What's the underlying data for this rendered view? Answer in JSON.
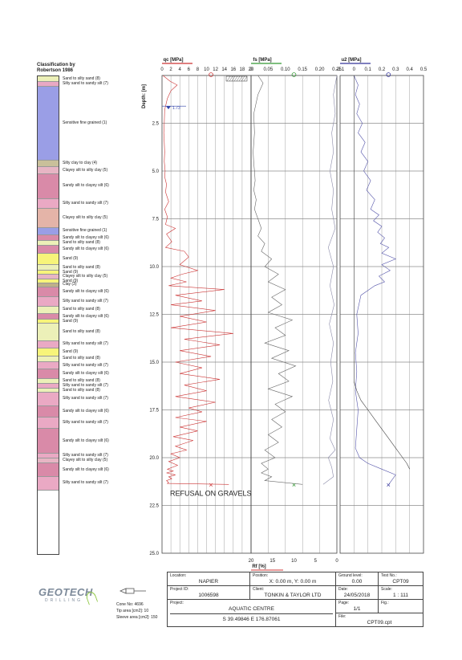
{
  "classification": {
    "title": "Classification by\nRobertson 1986",
    "layers": [
      {
        "top": 0,
        "bottom": 0.3,
        "color": "#ecf0b8",
        "label": "Sand to silty sand (8)"
      },
      {
        "top": 0.3,
        "bottom": 0.55,
        "color": "#e9a8c4",
        "label": "Silty sand to sandy silt (7)"
      },
      {
        "top": 0.55,
        "bottom": 4.4,
        "color": "#9a9ee6",
        "label": "Sensitive fine grained (1)"
      },
      {
        "top": 4.4,
        "bottom": 4.75,
        "color": "#c9c09a",
        "label": "Silty clay to clay (4)"
      },
      {
        "top": 4.75,
        "bottom": 5.1,
        "color": "#e7b5c4",
        "label": "Clayey silt to silty clay (5)"
      },
      {
        "top": 5.1,
        "bottom": 6.4,
        "color": "#d98aa8",
        "label": "Sandy silt to clayey silt (6)"
      },
      {
        "top": 6.4,
        "bottom": 6.9,
        "color": "#eaa9c4",
        "label": "Silty sand to sandy silt (7)"
      },
      {
        "top": 6.9,
        "bottom": 7.9,
        "color": "#e4b4a8",
        "label": "Clayey silt to silty clay (5)"
      },
      {
        "top": 7.9,
        "bottom": 8.3,
        "color": "#9a9ee6",
        "label": "Sensitive fine grained (1)"
      },
      {
        "top": 8.3,
        "bottom": 8.6,
        "color": "#d98aa8",
        "label": "Sandy silt to clayey silt (6)"
      },
      {
        "top": 8.6,
        "bottom": 8.85,
        "color": "#ecf0b8",
        "label": "Sand to silty sand (8)"
      },
      {
        "top": 8.85,
        "bottom": 9.25,
        "color": "#d98aa8",
        "label": "Sandy silt to clayey silt (6)"
      },
      {
        "top": 9.25,
        "bottom": 9.85,
        "color": "#f7f47a",
        "label": "Sand (9)"
      },
      {
        "top": 9.85,
        "bottom": 10.15,
        "color": "#ecf0b8",
        "label": "Sand to silty sand (8)"
      },
      {
        "top": 10.15,
        "bottom": 10.35,
        "color": "#f7f47a",
        "label": "Sand (9)"
      },
      {
        "top": 10.35,
        "bottom": 10.6,
        "color": "#e7b5c4",
        "label": "Clayey silt to silty clay (5)"
      },
      {
        "top": 10.6,
        "bottom": 10.8,
        "color": "#f7f47a",
        "label": "Sand (9)"
      },
      {
        "top": 10.8,
        "bottom": 11.0,
        "color": "#bdb08a",
        "label": "Clay (3)"
      },
      {
        "top": 11.0,
        "bottom": 11.5,
        "color": "#d98aa8",
        "label": "Sandy silt to clayey silt (6)"
      },
      {
        "top": 11.5,
        "bottom": 12.0,
        "color": "#eaa9c4",
        "label": "Silty sand to sandy silt (7)"
      },
      {
        "top": 12.0,
        "bottom": 12.4,
        "color": "#ecf0b8",
        "label": "Sand to silty sand (8)"
      },
      {
        "top": 12.4,
        "bottom": 12.7,
        "color": "#d98aa8",
        "label": "Sandy silt to clayey silt (6)"
      },
      {
        "top": 12.7,
        "bottom": 12.9,
        "color": "#f7f47a",
        "label": "Sand (9)"
      },
      {
        "top": 12.9,
        "bottom": 13.8,
        "color": "#ecf0b8",
        "label": "Sand to silty sand (8)"
      },
      {
        "top": 13.8,
        "bottom": 14.2,
        "color": "#eaa9c4",
        "label": "Silty sand to sandy silt (7)"
      },
      {
        "top": 14.2,
        "bottom": 14.6,
        "color": "#f7f47a",
        "label": "Sand (9)"
      },
      {
        "top": 14.6,
        "bottom": 14.9,
        "color": "#ecf0b8",
        "label": "Sand to silty sand (8)"
      },
      {
        "top": 14.9,
        "bottom": 15.3,
        "color": "#eaa9c4",
        "label": "Silty sand to sandy silt (7)"
      },
      {
        "top": 15.3,
        "bottom": 15.8,
        "color": "#d98aa8",
        "label": "Sandy silt to clayey silt (6)"
      },
      {
        "top": 15.8,
        "bottom": 16.05,
        "color": "#ecf0b8",
        "label": "Sand to silty sand (8)"
      },
      {
        "top": 16.05,
        "bottom": 16.3,
        "color": "#eaa9c4",
        "label": "Silty sand to sandy silt (7)"
      },
      {
        "top": 16.3,
        "bottom": 16.5,
        "color": "#ecf0b8",
        "label": "Sand to silty sand (8)"
      },
      {
        "top": 16.5,
        "bottom": 17.2,
        "color": "#eaa9c4",
        "label": "Silty sand to sandy silt (7)"
      },
      {
        "top": 17.2,
        "bottom": 17.8,
        "color": "#d98aa8",
        "label": "Sandy silt to clayey silt (6)"
      },
      {
        "top": 17.8,
        "bottom": 18.4,
        "color": "#eaa9c4",
        "label": "Silty sand to sandy silt (7)"
      },
      {
        "top": 18.4,
        "bottom": 19.7,
        "color": "#d98aa8",
        "label": "Sandy silt to clayey silt (6)"
      },
      {
        "top": 19.7,
        "bottom": 19.95,
        "color": "#eaa9c4",
        "label": "Silty sand to sandy silt (7)"
      },
      {
        "top": 19.95,
        "bottom": 20.2,
        "color": "#e7b5c4",
        "label": "Clayey silt to silty clay (5)"
      },
      {
        "top": 20.2,
        "bottom": 20.9,
        "color": "#d98aa8",
        "label": "Sandy silt to clayey silt (6)"
      },
      {
        "top": 20.9,
        "bottom": 21.6,
        "color": "#eaa9c4",
        "label": "Silty sand to sandy silt (7)"
      }
    ]
  },
  "chart_data": [
    {
      "type": "line",
      "title": "qc [MPa]",
      "ylabel": "Depth: [m]",
      "xlim": [
        0,
        20
      ],
      "ylim": [
        25,
        0
      ],
      "xticks": [
        "0",
        "2",
        "4",
        "6",
        "8",
        "10",
        "12",
        "14",
        "16",
        "18",
        "20"
      ],
      "yticks": [
        "2.5",
        "5.0",
        "7.5",
        "10.0",
        "12.5",
        "15.0",
        "17.5",
        "20.0",
        "22.5",
        "25.0"
      ],
      "grid": true,
      "annotations": [
        "1.73",
        "REFUSAL ON GRAVELS"
      ],
      "series": [
        {
          "color": "#cc3333",
          "x": [
            0.2,
            1.8,
            3.4,
            2.0,
            1.2,
            0.6,
            0.5,
            0.4,
            0.5,
            0.6,
            0.5,
            0.7,
            0.6,
            1.0,
            0.8,
            1.5,
            0.6,
            1.2,
            0.8,
            3.0,
            1.0,
            2.2,
            0.8,
            5.0,
            6.0,
            4.0,
            8.0,
            4.5,
            2.0,
            5.5,
            1.5,
            14.0,
            3.0,
            9.0,
            2.0,
            12.0,
            4.0,
            10.0,
            2.0,
            16.0,
            5.0,
            13.0,
            4.0,
            11.0,
            3.0,
            9.0,
            4.0,
            13.0,
            5.0,
            10.0,
            3.0,
            12.0,
            6.0,
            9.0,
            3.0,
            10.0,
            4.0,
            8.0,
            2.5,
            7.0,
            3.0,
            5.5,
            2.0,
            4.0,
            1.5,
            3.5,
            1.2,
            2.5,
            1.0,
            3.0,
            1.5,
            2.2,
            1.0,
            1.5,
            1.2,
            15.0
          ],
          "y": [
            0,
            0.3,
            0.5,
            0.8,
            1.2,
            1.8,
            2.5,
            3.0,
            3.5,
            4.0,
            4.5,
            5.0,
            5.3,
            5.7,
            6.1,
            6.6,
            7.0,
            7.4,
            7.8,
            8.0,
            8.3,
            8.7,
            9.0,
            9.2,
            9.5,
            9.9,
            10.2,
            10.4,
            10.6,
            10.8,
            11.0,
            11.2,
            11.5,
            11.8,
            12.0,
            12.3,
            12.6,
            12.9,
            13.2,
            13.5,
            13.8,
            14.1,
            14.4,
            14.7,
            15.0,
            15.3,
            15.6,
            15.9,
            16.2,
            16.5,
            16.8,
            17.1,
            17.4,
            17.6,
            17.9,
            18.1,
            18.4,
            18.6,
            18.9,
            19.1,
            19.4,
            19.6,
            19.8,
            20.0,
            20.2,
            20.4,
            20.6,
            20.7,
            20.8,
            20.9,
            21.0,
            21.1,
            21.2,
            21.3,
            21.35,
            21.4
          ]
        }
      ]
    },
    {
      "type": "line",
      "title": "fs [MPa]",
      "xlim": [
        0,
        0.25
      ],
      "ylim": [
        25,
        0
      ],
      "xticks": [
        "0",
        "0.05",
        "0.10",
        "0.15",
        "0.20",
        "0.25"
      ],
      "xlabel": "Rf [%]",
      "x2ticks": [
        "20",
        "15",
        "10",
        "5",
        "0"
      ],
      "grid": true,
      "series": [
        {
          "color": "#666666",
          "x": [
            0.02,
            0.035,
            0.02,
            0.008,
            0.01,
            0.006,
            0.008,
            0.01,
            0.012,
            0.008,
            0.015,
            0.01,
            0.02,
            0.03,
            0.02,
            0.04,
            0.03,
            0.06,
            0.04,
            0.08,
            0.05,
            0.1,
            0.06,
            0.09,
            0.05,
            0.12,
            0.07,
            0.1,
            0.04,
            0.11,
            0.06,
            0.13,
            0.08,
            0.11,
            0.05,
            0.12,
            0.07,
            0.1,
            0.06,
            0.09,
            0.05,
            0.08,
            0.04,
            0.07,
            0.03,
            0.05,
            0.03,
            0.06,
            0.04,
            0.15
          ],
          "y": [
            0,
            0.4,
            1.0,
            2.0,
            3.0,
            4.0,
            4.6,
            5.0,
            5.5,
            6.0,
            6.5,
            7.0,
            7.5,
            8.0,
            8.4,
            8.8,
            9.2,
            9.6,
            10.0,
            10.4,
            10.8,
            11.2,
            11.6,
            12.0,
            12.4,
            12.8,
            13.2,
            13.6,
            14.0,
            14.4,
            14.8,
            15.2,
            15.6,
            16.0,
            16.4,
            16.8,
            17.2,
            17.6,
            18.0,
            18.4,
            18.8,
            19.2,
            19.6,
            20.0,
            20.3,
            20.6,
            20.8,
            21.0,
            21.2,
            21.4
          ]
        },
        {
          "color": "#8a8aa8",
          "x": [
            0.25,
            0.24,
            0.245,
            0.235,
            0.24,
            0.23,
            0.24,
            0.235,
            0.245,
            0.225,
            0.24,
            0.23,
            0.242,
            0.228,
            0.24,
            0.232,
            0.238,
            0.226,
            0.24,
            0.23,
            0.245,
            0.225,
            0.235,
            0.24,
            0.21
          ],
          "y": [
            0,
            1.0,
            2.0,
            3.0,
            4.0,
            5.0,
            6.0,
            7.0,
            8.0,
            9.0,
            10.0,
            11.0,
            12.0,
            13.0,
            14.0,
            15.0,
            16.0,
            17.0,
            18.0,
            19.0,
            19.6,
            20.0,
            20.5,
            21.0,
            21.4
          ]
        }
      ]
    },
    {
      "type": "line",
      "title": "u2 [MPa]",
      "xlim": [
        -0.1,
        0.5
      ],
      "ylim": [
        25,
        0
      ],
      "xticks": [
        "-0.1",
        "0",
        "0.1",
        "0.2",
        "0.3",
        "0.4",
        "0.5"
      ],
      "grid": true,
      "series": [
        {
          "color": "#5555aa",
          "x": [
            0.0,
            0.03,
            0.01,
            0.04,
            0.02,
            0.06,
            0.03,
            0.08,
            0.05,
            0.1,
            0.07,
            0.12,
            0.09,
            0.15,
            0.12,
            0.18,
            0.14,
            0.2,
            0.17,
            0.22,
            0.19,
            0.25,
            0.2,
            0.3,
            0.2,
            0.26,
            0.18,
            0.22,
            0.15,
            0.05,
            0.02,
            0.03,
            0.01,
            0.02,
            0.01,
            0.03,
            0.02,
            0.01,
            0.04,
            0.1,
            0.2,
            0.3,
            0.25
          ],
          "y": [
            0,
            0.5,
            1.0,
            1.5,
            2.0,
            2.5,
            3.0,
            3.5,
            4.0,
            4.5,
            5.0,
            5.5,
            6.0,
            6.5,
            7.0,
            7.3,
            7.6,
            7.9,
            8.2,
            8.5,
            8.8,
            9.0,
            9.3,
            9.6,
            9.9,
            10.2,
            10.5,
            10.8,
            11.0,
            11.5,
            12.5,
            13.5,
            14.5,
            15.5,
            16.5,
            17.5,
            18.5,
            19.5,
            20.0,
            20.3,
            20.6,
            20.9,
            21.4
          ]
        },
        {
          "color": "#444444",
          "x": [
            0.0,
            0.0,
            0.0,
            0.0,
            0.0,
            0.0,
            0.0,
            0.0,
            0.0,
            0.0,
            0.0,
            0.02,
            0.05,
            0.1,
            0.15,
            0.2,
            0.25,
            0.3,
            0.35,
            0.38,
            0.4
          ],
          "y": [
            0,
            2.0,
            4.0,
            6.0,
            8.0,
            10.0,
            12.0,
            13.0,
            14.0,
            15.0,
            16.0,
            16.5,
            17.0,
            17.5,
            18.0,
            18.5,
            19.0,
            19.5,
            20.0,
            20.3,
            20.6
          ]
        }
      ]
    }
  ],
  "footer": {
    "cone_no": "Cone No: 4696",
    "tip_area": "Tip area [cm2]: 10",
    "sleeve_area": "Sleeve area [cm2]: 150",
    "location_key": "Location:",
    "location_val": "NAPIER",
    "position_key": "Position:",
    "position_val": "X: 0.00 m, Y: 0.00 m",
    "ground_key": "Ground level:",
    "ground_val": "0.00",
    "testno_key": "Test No.:",
    "testno_val": "CPT09",
    "projectid_key": "Project ID:",
    "projectid_val": "1006598",
    "client_key": "Client:",
    "client_val": "TONKIN & TAYLOR LTD",
    "date_key": "Date:",
    "date_val": "24/05/2018",
    "scale_key": "Scale:",
    "scale_val": "1 : 111",
    "project_key": "Project:",
    "project_val": "AQUATIC CENTRE",
    "page_key": "Page:",
    "page_val": "1/1",
    "fig_key": "Fig.:",
    "fig_val": "",
    "coords_val": "S 39.49846 E 176.87061",
    "file_key": "File:",
    "file_val": "CPT09.cpt",
    "logo_top": "GEOTECH",
    "logo_bottom": "DRILLING"
  }
}
